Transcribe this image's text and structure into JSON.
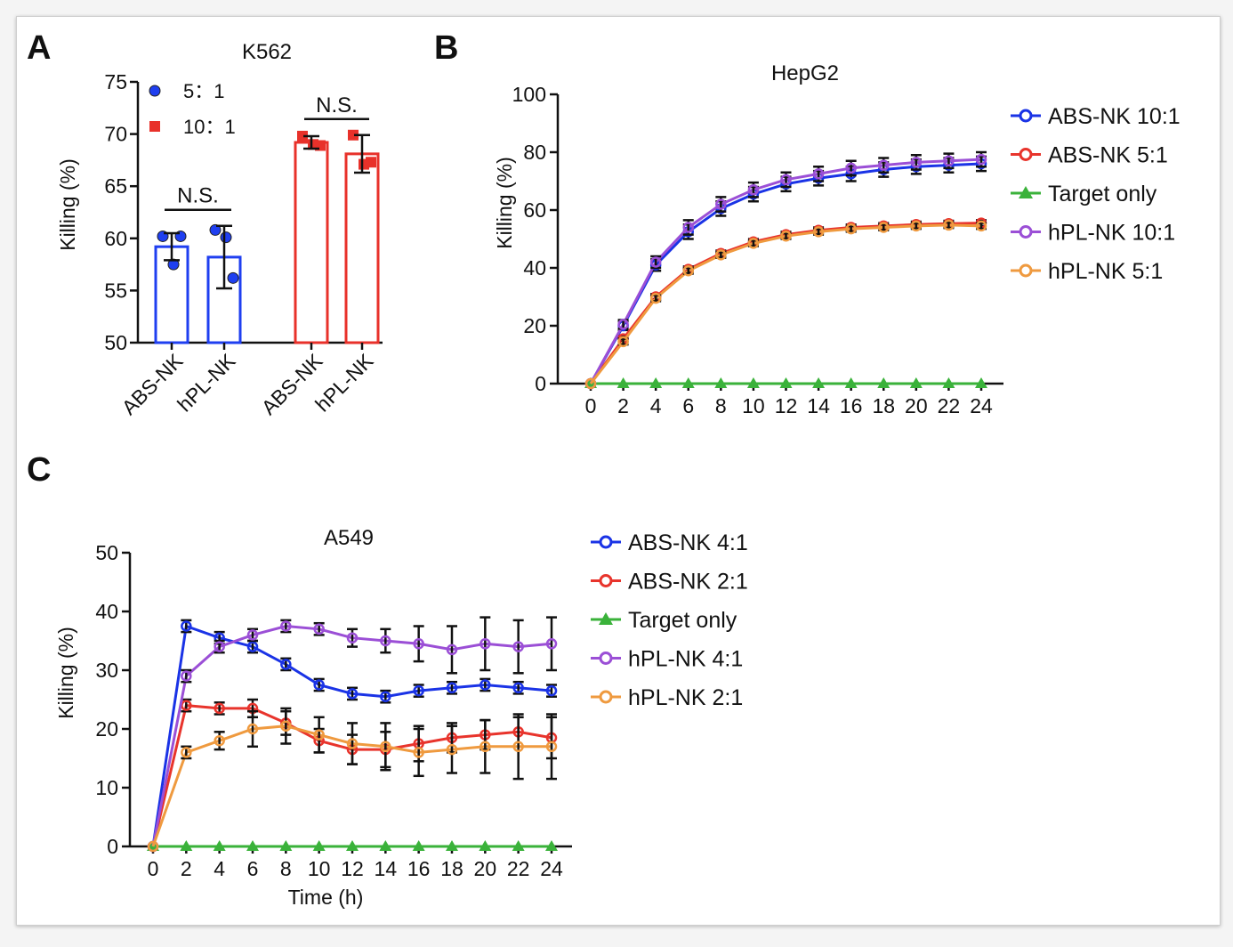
{
  "chart_data": [
    {
      "panel": "A",
      "type": "bar",
      "title": "K562",
      "ylabel": "Killing (%)",
      "xlabel": "",
      "ylim": [
        50,
        75
      ],
      "yticks": [
        50,
        55,
        60,
        65,
        70,
        75
      ],
      "categories": [
        "ABS-NK",
        "hPL-NK",
        "ABS-NK",
        "hPL-NK"
      ],
      "groups": [
        "5：1",
        "5：1",
        "10：1",
        "10：1"
      ],
      "values": [
        59.2,
        58.2,
        69.2,
        68.1
      ],
      "errors": [
        1.3,
        3.0,
        0.6,
        1.8
      ],
      "points": [
        [
          60.2,
          57.5,
          60.2
        ],
        [
          60.8,
          60.1,
          56.2
        ],
        [
          69.8,
          69.0,
          68.9
        ],
        [
          69.9,
          67.1,
          67.3
        ]
      ],
      "significance": [
        {
          "label": "N.S.",
          "between": [
            0,
            1
          ]
        },
        {
          "label": "N.S.",
          "between": [
            2,
            3
          ]
        }
      ],
      "legend": [
        {
          "name": "5：1",
          "color": "#1f3ff0",
          "marker": "circle"
        },
        {
          "name": "10：1",
          "color": "#e8312a",
          "marker": "square"
        }
      ],
      "legend_position": "top-left",
      "grid": false
    },
    {
      "panel": "B",
      "type": "line",
      "title": "HepG2",
      "ylabel": "Killing (%)",
      "xlabel": "",
      "ylim": [
        0,
        100
      ],
      "xlim": [
        0,
        24
      ],
      "yticks": [
        0,
        20,
        40,
        60,
        80,
        100
      ],
      "x": [
        0,
        2,
        4,
        6,
        8,
        10,
        12,
        14,
        16,
        18,
        20,
        22,
        24
      ],
      "series": [
        {
          "name": "ABS-NK 10:1",
          "color": "#1a33e6",
          "marker": "circle",
          "values": [
            0,
            20,
            41,
            52.5,
            60.5,
            65.5,
            69,
            71,
            72.5,
            74,
            75,
            75.5,
            76
          ],
          "errors": [
            0,
            1.5,
            2,
            2.5,
            2.5,
            2.5,
            2.5,
            2.5,
            2.5,
            2.5,
            2.5,
            2.5,
            2.5
          ]
        },
        {
          "name": "ABS-NK 5:1",
          "color": "#e8342c",
          "marker": "circle",
          "values": [
            0,
            15.5,
            30,
            39.5,
            45,
            49,
            51.5,
            53,
            54,
            54.5,
            55,
            55.3,
            55.5
          ],
          "errors": [
            0,
            1,
            1,
            1,
            1,
            1,
            1,
            1,
            1,
            1,
            1,
            1,
            1
          ]
        },
        {
          "name": "Target only",
          "color": "#3ab23a",
          "marker": "triangle",
          "values": [
            0,
            0,
            0,
            0,
            0,
            0,
            0,
            0,
            0,
            0,
            0,
            0,
            0
          ],
          "errors": [
            0,
            0,
            0,
            0,
            0,
            0,
            0,
            0,
            0,
            0,
            0,
            0,
            0
          ]
        },
        {
          "name": "hPL-NK 10:1",
          "color": "#9b4fd6",
          "marker": "circle",
          "values": [
            0,
            20.5,
            42,
            54,
            62,
            67,
            70.5,
            72.5,
            74.5,
            75.5,
            76.5,
            77,
            77.5
          ],
          "errors": [
            0,
            1.5,
            2,
            2.5,
            2.5,
            2.5,
            2.5,
            2.5,
            2.5,
            2.5,
            2.5,
            2.5,
            2.5
          ]
        },
        {
          "name": "hPL-NK 5:1",
          "color": "#ef9a3f",
          "marker": "circle",
          "values": [
            0,
            14.5,
            29.5,
            39,
            44.5,
            48.5,
            51,
            52.5,
            53.5,
            54,
            54.5,
            54.8,
            54.5
          ],
          "errors": [
            0,
            1,
            1,
            1,
            1,
            1,
            1,
            1,
            1,
            1,
            1,
            1,
            1
          ]
        }
      ],
      "legend_position": "right",
      "grid": false
    },
    {
      "panel": "C",
      "type": "line",
      "title": "A549",
      "ylabel": "Killing (%)",
      "xlabel": "Time (h)",
      "ylim": [
        0,
        50
      ],
      "xlim": [
        0,
        24
      ],
      "yticks": [
        0,
        10,
        20,
        30,
        40,
        50
      ],
      "x": [
        0,
        2,
        4,
        6,
        8,
        10,
        12,
        14,
        16,
        18,
        20,
        22,
        24
      ],
      "series": [
        {
          "name": "ABS-NK 4:1",
          "color": "#1a33e6",
          "marker": "circle",
          "values": [
            0,
            37.5,
            35.5,
            34,
            31,
            27.5,
            26,
            25.5,
            26.5,
            27,
            27.5,
            27,
            26.5
          ],
          "errors": [
            0,
            1,
            1,
            1,
            1,
            1,
            1,
            1,
            1,
            1,
            1,
            1,
            1
          ]
        },
        {
          "name": "ABS-NK 2:1",
          "color": "#e8342c",
          "marker": "circle",
          "values": [
            0,
            24,
            23.5,
            23.5,
            21,
            18,
            16.5,
            16.5,
            17.5,
            18.5,
            19,
            19.5,
            18.5
          ],
          "errors": [
            0,
            1,
            1,
            1.5,
            2,
            2,
            2.5,
            3,
            3,
            2.5,
            2.5,
            2.5,
            3.5
          ]
        },
        {
          "name": "Target only",
          "color": "#3ab23a",
          "marker": "triangle",
          "values": [
            0,
            0,
            0,
            0,
            0,
            0,
            0,
            0,
            0,
            0,
            0,
            0,
            0
          ],
          "errors": [
            0,
            0,
            0,
            0,
            0,
            0,
            0,
            0,
            0,
            0,
            0,
            0,
            0
          ]
        },
        {
          "name": "hPL-NK 4:1",
          "color": "#9b4fd6",
          "marker": "circle",
          "values": [
            0,
            29,
            34,
            36,
            37.5,
            37,
            35.5,
            35,
            34.5,
            33.5,
            34.5,
            34,
            34.5
          ],
          "errors": [
            0,
            1,
            1,
            1,
            1,
            1,
            1.5,
            2,
            3,
            4,
            4.5,
            4.5,
            4.5
          ]
        },
        {
          "name": "hPL-NK 2:1",
          "color": "#ef9a3f",
          "marker": "circle",
          "values": [
            0,
            16,
            18,
            20,
            20.5,
            19,
            17.5,
            17,
            16,
            16.5,
            17,
            17,
            17
          ],
          "errors": [
            0,
            1,
            1.5,
            3,
            3,
            3,
            3.5,
            4,
            4,
            4,
            4.5,
            5.5,
            5.5
          ]
        }
      ],
      "legend_position": "right",
      "grid": false
    }
  ]
}
